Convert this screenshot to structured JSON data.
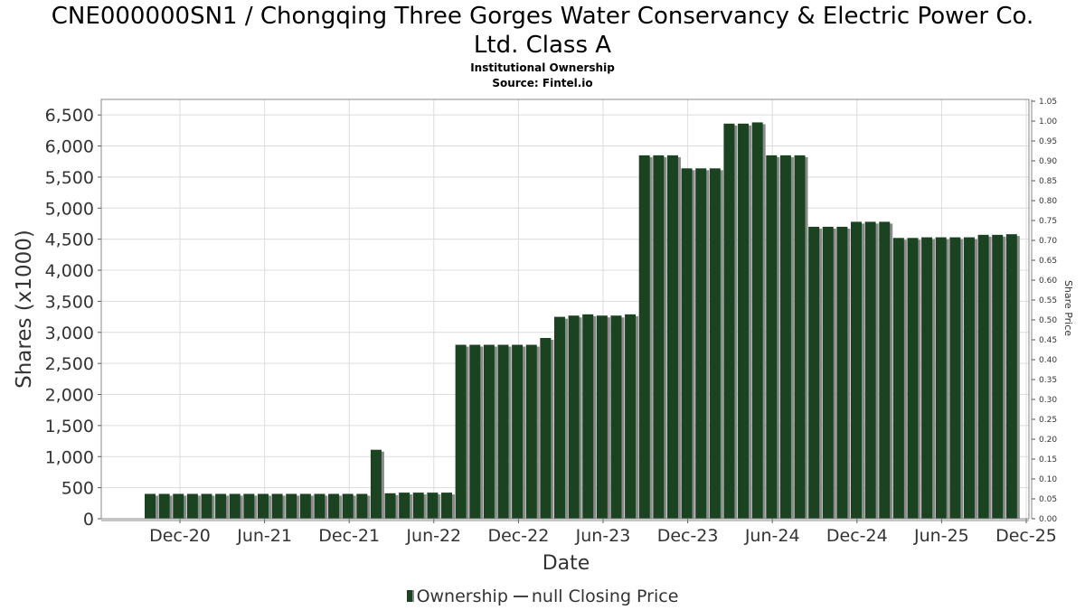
{
  "title_line1": "CNE000000SN1 / Chongqing Three Gorges Water Conservancy & Electric Power Co.",
  "title_line2": "Ltd. Class A",
  "subtitle1": "Institutional Ownership",
  "subtitle2": "Source: Fintel.io",
  "legend": {
    "ownership": "Ownership",
    "price": "null Closing Price"
  },
  "colors": {
    "bar": "#1b4322",
    "bar_shadow": "#8a8a8a",
    "grid": "#dcdcdc"
  },
  "chart_data": {
    "type": "bar",
    "xlabel": "Date",
    "ylabel": "Shares (x1000)",
    "y2label": "Share Price",
    "ylim": [
      0,
      6750
    ],
    "y2lim": [
      0,
      1.05
    ],
    "yticks": [
      0,
      500,
      1000,
      1500,
      2000,
      2500,
      3000,
      3500,
      4000,
      4500,
      5000,
      5500,
      6000,
      6500
    ],
    "ytick_labels": [
      "0",
      "500",
      "1,000",
      "1,500",
      "2,000",
      "2,500",
      "3,000",
      "3,500",
      "4,000",
      "4,500",
      "5,000",
      "5,500",
      "6,000",
      "6,500"
    ],
    "y2ticks": [
      "0.00",
      "0.05",
      "0.10",
      "0.15",
      "0.20",
      "0.25",
      "0.30",
      "0.35",
      "0.40",
      "0.45",
      "0.50",
      "0.55",
      "0.60",
      "0.65",
      "0.70",
      "0.75",
      "0.80",
      "0.85",
      "0.90",
      "0.95",
      "1.00",
      "1.05"
    ],
    "xtick_labels": [
      "Dec-20",
      "Jun-21",
      "Dec-21",
      "Jun-22",
      "Dec-22",
      "Jun-23",
      "Dec-23",
      "Jun-24",
      "Dec-24",
      "Jun-25",
      "Dec-25"
    ],
    "grid": true,
    "legend_position": "bottom",
    "series": [
      {
        "name": "Ownership",
        "values": [
          400,
          400,
          400,
          400,
          400,
          400,
          400,
          400,
          400,
          400,
          400,
          400,
          400,
          400,
          400,
          400,
          1110,
          410,
          420,
          420,
          420,
          420,
          2800,
          2800,
          2800,
          2800,
          2800,
          2800,
          2910,
          3250,
          3270,
          3290,
          3270,
          3270,
          3290,
          5850,
          5850,
          5850,
          5640,
          5640,
          5640,
          6360,
          6360,
          6380,
          5850,
          5850,
          5850,
          4700,
          4700,
          4700,
          4780,
          4780,
          4780,
          4520,
          4520,
          4530,
          4530,
          4530,
          4530,
          4570,
          4570,
          4580
        ]
      }
    ]
  }
}
